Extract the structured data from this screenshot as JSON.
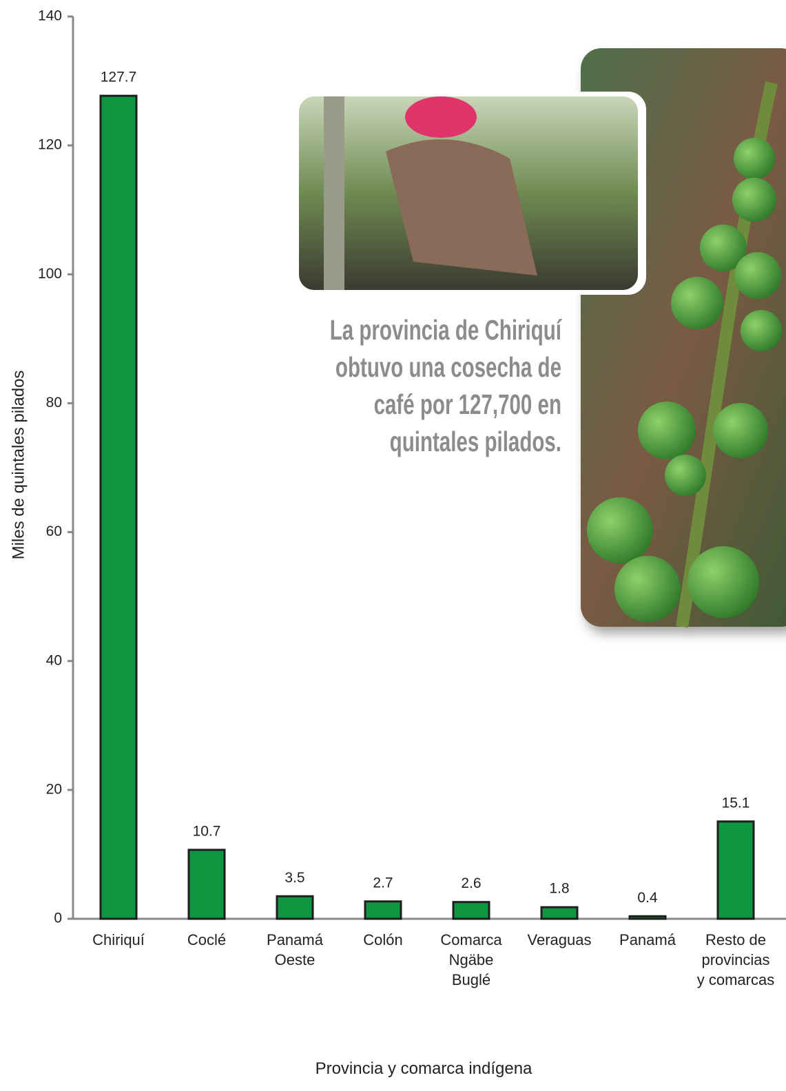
{
  "chart_data": {
    "type": "bar",
    "annotation": "La provincia de Chiriquí obtuvo una cosecha de café por 127,700 en quintales pilados.",
    "y_label": "Miles de quintales pilados",
    "x_label": "Provincia y comarca indígena",
    "categories": [
      "Chiriquí",
      "Coclé",
      "Panamá Oeste",
      "Colón",
      "Comarca Ngäbe Buglé",
      "Veraguas",
      "Panamá",
      "Resto de provincias y comarcas"
    ],
    "values": [
      127.7,
      10.7,
      3.5,
      2.7,
      2.6,
      1.8,
      0.4,
      15.1
    ],
    "color": "#0f9640",
    "ylim": [
      0,
      140
    ],
    "yticks": [
      0,
      20,
      40,
      60,
      80,
      100,
      120,
      140
    ],
    "grid": false
  }
}
